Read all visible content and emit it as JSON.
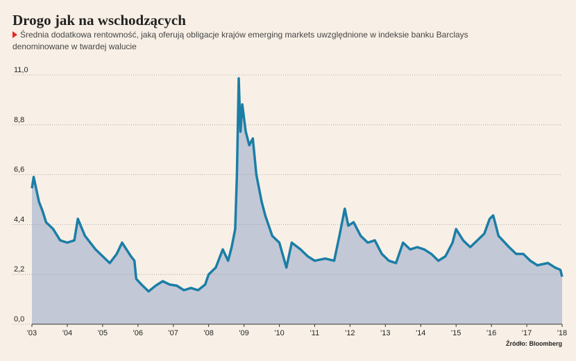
{
  "chart_data": {
    "type": "area",
    "title": "Drogo jak na wschodzących",
    "subtitle": [
      "Średnia dodatkowa rentowność, jaką oferują obligacje krajów emerging markets uwzględnione w indeksie banku Barclays",
      "denominowane w twardej walucie"
    ],
    "source": "Źródło: Bloomberg",
    "line_color": "#1b7ea6",
    "fill_color": "#c3c8d6",
    "grid": true,
    "x": [
      2003.0,
      2003.05,
      2003.2,
      2003.3,
      2003.4,
      2003.6,
      2003.8,
      2004.0,
      2004.2,
      2004.3,
      2004.5,
      2004.8,
      2005.0,
      2005.2,
      2005.4,
      2005.55,
      2005.8,
      2005.9,
      2005.95,
      2006.1,
      2006.3,
      2006.5,
      2006.7,
      2006.9,
      2007.1,
      2007.3,
      2007.5,
      2007.7,
      2007.9,
      2008.0,
      2008.2,
      2008.4,
      2008.55,
      2008.65,
      2008.75,
      2008.8,
      2008.85,
      2008.9,
      2008.95,
      2009.05,
      2009.15,
      2009.25,
      2009.35,
      2009.5,
      2009.6,
      2009.8,
      2010.0,
      2010.2,
      2010.35,
      2010.6,
      2010.8,
      2011.0,
      2011.3,
      2011.55,
      2011.7,
      2011.85,
      2011.95,
      2012.1,
      2012.3,
      2012.5,
      2012.7,
      2012.9,
      2013.1,
      2013.3,
      2013.5,
      2013.7,
      2013.9,
      2014.1,
      2014.3,
      2014.5,
      2014.7,
      2014.9,
      2015.0,
      2015.2,
      2015.4,
      2015.6,
      2015.8,
      2015.95,
      2016.05,
      2016.2,
      2016.5,
      2016.7,
      2016.9,
      2017.1,
      2017.3,
      2017.6,
      2017.8,
      2017.95,
      2018.0
    ],
    "values": [
      6.0,
      6.5,
      5.4,
      5.0,
      4.5,
      4.2,
      3.7,
      3.6,
      3.7,
      4.65,
      3.9,
      3.3,
      3.0,
      2.7,
      3.1,
      3.6,
      3.0,
      2.8,
      2.0,
      1.75,
      1.45,
      1.7,
      1.9,
      1.75,
      1.7,
      1.5,
      1.6,
      1.5,
      1.75,
      2.2,
      2.5,
      3.3,
      2.8,
      3.4,
      4.2,
      6.6,
      10.85,
      8.5,
      9.7,
      8.5,
      7.9,
      8.2,
      6.6,
      5.4,
      4.8,
      3.9,
      3.6,
      2.5,
      3.6,
      3.3,
      3.0,
      2.8,
      2.9,
      2.8,
      3.9,
      5.1,
      4.35,
      4.5,
      3.9,
      3.6,
      3.7,
      3.1,
      2.8,
      2.7,
      3.6,
      3.3,
      3.4,
      3.3,
      3.1,
      2.8,
      3.0,
      3.6,
      4.2,
      3.7,
      3.4,
      3.7,
      4.0,
      4.65,
      4.8,
      3.9,
      3.4,
      3.1,
      3.1,
      2.8,
      2.6,
      2.7,
      2.5,
      2.4,
      2.1
    ],
    "xlim": [
      2003,
      2018
    ],
    "xticks": [
      {
        "value": 2003,
        "label": "'03"
      },
      {
        "value": 2004,
        "label": "'04"
      },
      {
        "value": 2005,
        "label": "'05"
      },
      {
        "value": 2006,
        "label": "'06"
      },
      {
        "value": 2007,
        "label": "'07"
      },
      {
        "value": 2008,
        "label": "'08"
      },
      {
        "value": 2009,
        "label": "'09"
      },
      {
        "value": 2010,
        "label": "'10"
      },
      {
        "value": 2011,
        "label": "'11"
      },
      {
        "value": 2012,
        "label": "'12"
      },
      {
        "value": 2013,
        "label": "'13"
      },
      {
        "value": 2014,
        "label": "'14"
      },
      {
        "value": 2015,
        "label": "'15"
      },
      {
        "value": 2016,
        "label": "'16"
      },
      {
        "value": 2017,
        "label": "'17"
      },
      {
        "value": 2018,
        "label": "'18"
      }
    ],
    "ylim": [
      0,
      11
    ],
    "yticks": [
      {
        "value": 0,
        "label": "0,0"
      },
      {
        "value": 2.2,
        "label": "2,2"
      },
      {
        "value": 4.4,
        "label": "4,4"
      },
      {
        "value": 6.6,
        "label": "6,6"
      },
      {
        "value": 8.8,
        "label": "8,8"
      },
      {
        "value": 11,
        "label": "11,0"
      }
    ]
  }
}
